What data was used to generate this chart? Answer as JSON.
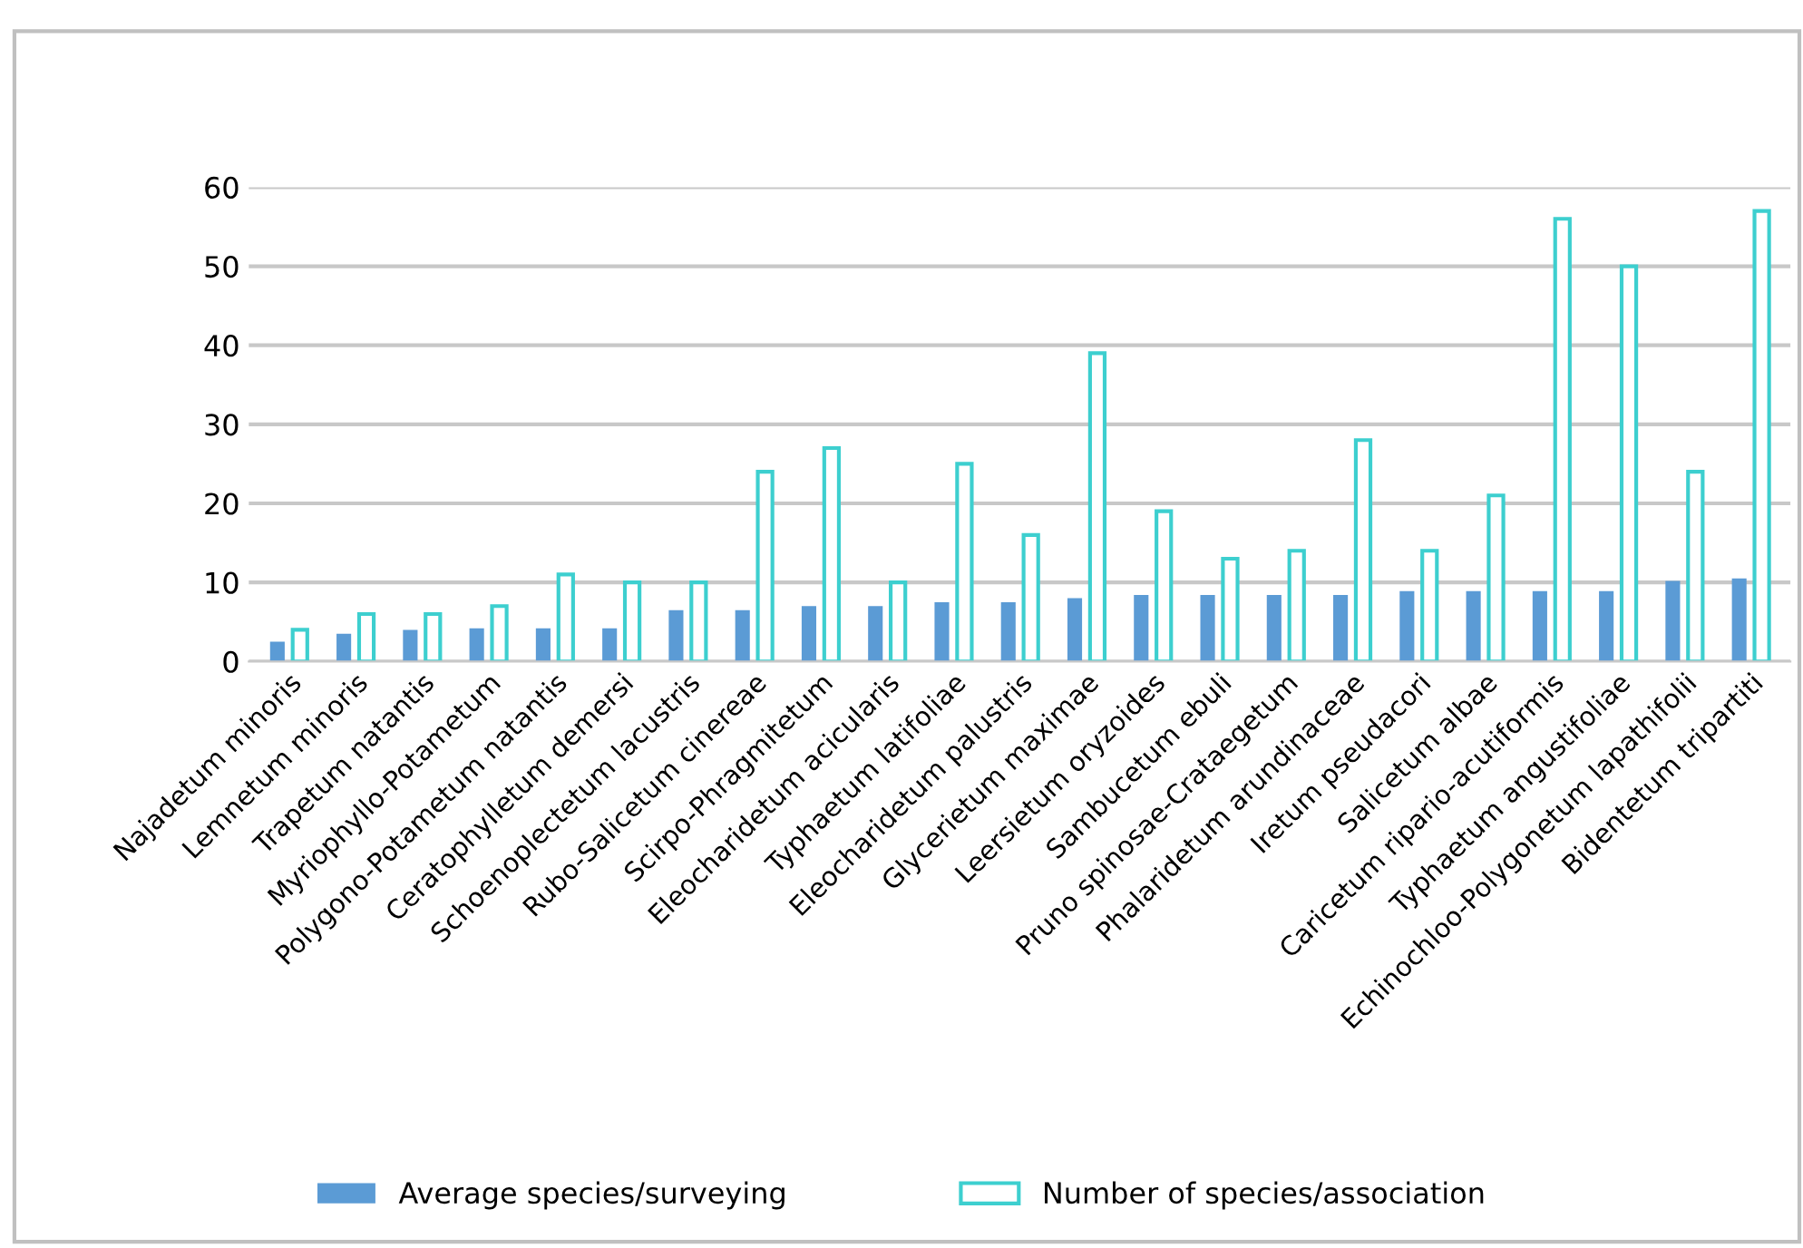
{
  "chart_data": {
    "type": "bar",
    "categories": [
      "Najadetum minoris",
      "Lemnetum minoris",
      "Trapetum natantis",
      "Myriophyllo-Potametum",
      "Polygono-Potametum natantis",
      "Ceratophylletum demersi",
      "Schoenoplectetum lacustris",
      "Rubo-Salicetum cinereae",
      "Scirpo-Phragmitetum",
      "Eleocharidetum acicularis",
      "Typhaetum latifoliae",
      "Eleocharidetum palustris",
      "Glycerietum maximae",
      "Leersietum oryzoides",
      "Sambucetum ebuli",
      "Pruno spinosae-Crataegetum",
      "Phalaridetum arundinaceae",
      "Iretum pseudacori",
      "Salicetum albae",
      "Caricetum ripario-acutiformis",
      "Typhaetum angustifoliae",
      "Echinochloo-Polygonetum lapathifolii",
      "Bidentetum tripartiti"
    ],
    "series": [
      {
        "name": "Average species/surveying",
        "color": "#5b9bd5",
        "values": [
          2.5,
          3.5,
          4,
          4.2,
          4.2,
          4.2,
          6.5,
          6.5,
          7,
          7,
          7.5,
          7.5,
          8,
          8.4,
          8.4,
          8.4,
          8.4,
          8.9,
          8.9,
          8.9,
          8.9,
          10.2,
          10.5
        ]
      },
      {
        "name": "Number of species/association",
        "color": "#3dcfcf",
        "values": [
          4,
          6,
          6,
          7,
          11,
          10,
          10,
          24,
          27,
          10,
          25,
          16,
          39,
          19,
          13,
          14,
          28,
          14,
          21,
          56,
          50,
          24,
          57
        ]
      }
    ],
    "ylim": [
      0,
      60
    ],
    "yticks": [
      0,
      10,
      20,
      30,
      40,
      50,
      60
    ],
    "grid": "y",
    "legend": "bottom"
  }
}
